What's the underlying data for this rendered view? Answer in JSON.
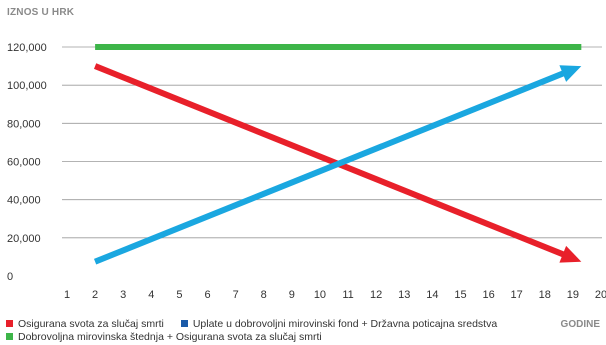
{
  "chart_data": {
    "type": "line",
    "y_unit_label": "IZNOS U HRK",
    "x_unit_label": "GODINE",
    "x_ticks": [
      1,
      2,
      3,
      4,
      5,
      6,
      7,
      8,
      9,
      10,
      11,
      12,
      13,
      14,
      15,
      16,
      17,
      18,
      19,
      20
    ],
    "y_ticks": [
      "0",
      "20,000",
      "40,000",
      "60,000",
      "80,000",
      "100,000",
      "120,000"
    ],
    "y_tick_values": [
      0,
      20000,
      40000,
      60000,
      80000,
      100000,
      120000
    ],
    "xlim": [
      1,
      20
    ],
    "ylim": [
      0,
      120000
    ],
    "grid": "horizontal",
    "series": [
      {
        "name": "Dobrovoljna mirovinska štednja + Osigurana svota za slučaj smrti",
        "color": "#3db549",
        "arrow": false,
        "points": [
          [
            2,
            120000
          ],
          [
            19.3,
            120000
          ]
        ]
      },
      {
        "name": "Osigurana svota za slučaj smrti",
        "color": "#e8202a",
        "arrow": true,
        "points": [
          [
            2,
            110000
          ],
          [
            19.3,
            7500
          ]
        ]
      },
      {
        "name": "Uplate u dobrovoljni  mirovinski fond + Državna poticajna sredstva",
        "color": "#1aa7e0",
        "arrow": true,
        "points": [
          [
            2,
            7500
          ],
          [
            19.3,
            110000
          ]
        ]
      }
    ],
    "legend": {
      "row1": [
        {
          "label": "Osigurana svota za slučaj smrti",
          "color": "#e8202a"
        },
        {
          "label": "Uplate u dobrovoljni  mirovinski fond + Državna poticajna sredstva",
          "color": "#1a5aa8"
        }
      ],
      "row2": [
        {
          "label": "Dobrovoljna mirovinska štednja + Osigurana svota za slučaj smrti",
          "color": "#3db549"
        }
      ]
    }
  }
}
